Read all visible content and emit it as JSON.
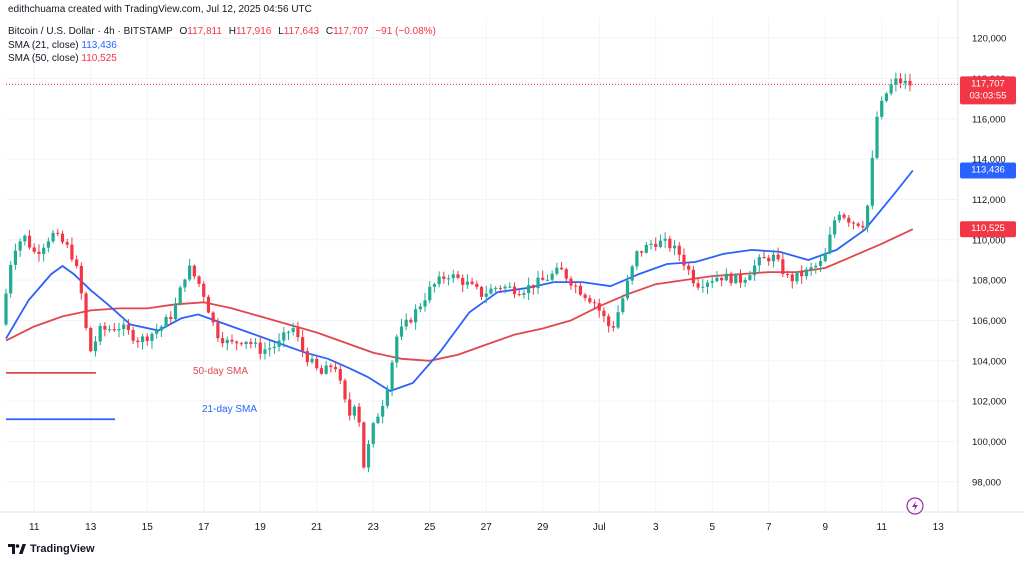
{
  "header": {
    "attribution": "edithchuama created with TradingView.com, Jul 12, 2025 04:56 UTC",
    "symbol": "Bitcoin / U.S. Dollar · 4h · BITSTAMP",
    "ohlc": {
      "o_label": "O",
      "o": "117,811",
      "h_label": "H",
      "h": "117,916",
      "l_label": "L",
      "l": "117,643",
      "c_label": "C",
      "c": "117,707",
      "change": "−91 (−0.08%)"
    },
    "sma21_label": "SMA (21, close)",
    "sma21_value": "113,436",
    "sma50_label": "SMA (50, close)",
    "sma50_value": "110,525"
  },
  "annotations": {
    "sma50_text": "50-day SMA",
    "sma21_text": "21-day SMA"
  },
  "price_tags": {
    "last_price": "117,707",
    "countdown": "03:03:55",
    "sma21": "113,436",
    "sma50": "110,525"
  },
  "footer": {
    "brand": "TradingView"
  },
  "colors": {
    "up": "#22ab94",
    "down": "#f23645",
    "sma21": "#2962ff",
    "sma50": "#e0474c",
    "grid": "#f0f3fa"
  },
  "chart_data": {
    "type": "candlestick",
    "ylim": [
      96500,
      121000
    ],
    "y_ticks": [
      98000,
      100000,
      102000,
      104000,
      106000,
      108000,
      110000,
      112000,
      114000,
      116000,
      118000,
      120000
    ],
    "x_ticks": [
      "11",
      "13",
      "15",
      "17",
      "19",
      "21",
      "23",
      "25",
      "27",
      "29",
      "Jul",
      "3",
      "5",
      "7",
      "9",
      "11",
      "13"
    ],
    "x_range_days": [
      10.0,
      43.7
    ],
    "x_tick_days": [
      11,
      13,
      15,
      17,
      19,
      21,
      23,
      25,
      27,
      29,
      31,
      33,
      35,
      37,
      39,
      41,
      43
    ],
    "anchors": [
      [
        10.0,
        105800
      ],
      [
        10.4,
        109500
      ],
      [
        10.8,
        110200
      ],
      [
        11.2,
        109300
      ],
      [
        11.8,
        110300
      ],
      [
        12.3,
        109700
      ],
      [
        12.6,
        109000
      ],
      [
        12.9,
        106800
      ],
      [
        13.1,
        104300
      ],
      [
        13.5,
        105500
      ],
      [
        14.2,
        105700
      ],
      [
        14.9,
        105000
      ],
      [
        15.6,
        105600
      ],
      [
        16.1,
        106400
      ],
      [
        16.6,
        108700
      ],
      [
        17.1,
        107600
      ],
      [
        17.6,
        105400
      ],
      [
        18.1,
        104800
      ],
      [
        18.6,
        105100
      ],
      [
        19.2,
        104500
      ],
      [
        19.8,
        104800
      ],
      [
        20.3,
        105700
      ],
      [
        20.7,
        104400
      ],
      [
        21.3,
        103300
      ],
      [
        21.8,
        103900
      ],
      [
        22.3,
        101200
      ],
      [
        22.6,
        102300
      ],
      [
        22.8,
        98600
      ],
      [
        23.2,
        100900
      ],
      [
        23.6,
        102300
      ],
      [
        24.0,
        105200
      ],
      [
        24.6,
        106300
      ],
      [
        25.2,
        107600
      ],
      [
        25.8,
        108300
      ],
      [
        26.4,
        107900
      ],
      [
        27.0,
        107300
      ],
      [
        27.6,
        107700
      ],
      [
        28.4,
        107500
      ],
      [
        29.2,
        108000
      ],
      [
        29.8,
        108500
      ],
      [
        30.4,
        107600
      ],
      [
        31.0,
        106900
      ],
      [
        31.6,
        105500
      ],
      [
        32.0,
        107100
      ],
      [
        32.5,
        109300
      ],
      [
        33.1,
        109900
      ],
      [
        33.6,
        109800
      ],
      [
        34.0,
        109300
      ],
      [
        34.6,
        107800
      ],
      [
        35.4,
        108200
      ],
      [
        36.2,
        108000
      ],
      [
        36.8,
        108900
      ],
      [
        37.3,
        109200
      ],
      [
        37.9,
        108000
      ],
      [
        38.5,
        108400
      ],
      [
        39.1,
        108900
      ],
      [
        39.6,
        111500
      ],
      [
        40.1,
        110900
      ],
      [
        40.6,
        110800
      ],
      [
        41.0,
        116100
      ],
      [
        41.4,
        117500
      ],
      [
        41.7,
        117900
      ],
      [
        42.1,
        117707
      ]
    ],
    "sma21": [
      [
        10.0,
        105100
      ],
      [
        10.8,
        107000
      ],
      [
        11.6,
        108300
      ],
      [
        12.0,
        108700
      ],
      [
        12.4,
        108300
      ],
      [
        13.0,
        107500
      ],
      [
        13.6,
        106800
      ],
      [
        14.4,
        105800
      ],
      [
        15.4,
        105500
      ],
      [
        16.2,
        106100
      ],
      [
        16.8,
        106300
      ],
      [
        17.6,
        105900
      ],
      [
        18.6,
        105400
      ],
      [
        19.6,
        104900
      ],
      [
        20.6,
        104400
      ],
      [
        21.4,
        104100
      ],
      [
        22.2,
        103600
      ],
      [
        22.8,
        103200
      ],
      [
        23.6,
        102500
      ],
      [
        24.4,
        102900
      ],
      [
        25.4,
        104500
      ],
      [
        26.4,
        106400
      ],
      [
        27.4,
        107400
      ],
      [
        28.4,
        107600
      ],
      [
        29.4,
        107900
      ],
      [
        30.4,
        107900
      ],
      [
        31.4,
        107700
      ],
      [
        32.4,
        108300
      ],
      [
        33.4,
        108800
      ],
      [
        34.4,
        108900
      ],
      [
        35.4,
        109300
      ],
      [
        36.4,
        109500
      ],
      [
        37.4,
        109400
      ],
      [
        38.4,
        109000
      ],
      [
        39.4,
        109500
      ],
      [
        40.4,
        110500
      ],
      [
        41.4,
        112200
      ],
      [
        42.1,
        113436
      ]
    ],
    "sma50": [
      [
        10.0,
        105000
      ],
      [
        11.0,
        105700
      ],
      [
        12.0,
        106200
      ],
      [
        13.0,
        106500
      ],
      [
        14.0,
        106600
      ],
      [
        15.0,
        106600
      ],
      [
        16.0,
        106800
      ],
      [
        17.0,
        106900
      ],
      [
        18.0,
        106600
      ],
      [
        19.0,
        106200
      ],
      [
        20.0,
        105800
      ],
      [
        21.0,
        105400
      ],
      [
        22.0,
        104900
      ],
      [
        23.0,
        104400
      ],
      [
        24.0,
        104100
      ],
      [
        25.0,
        104000
      ],
      [
        26.0,
        104300
      ],
      [
        27.0,
        104800
      ],
      [
        28.0,
        105300
      ],
      [
        29.0,
        105600
      ],
      [
        30.0,
        106000
      ],
      [
        31.0,
        106700
      ],
      [
        32.0,
        107300
      ],
      [
        33.0,
        107800
      ],
      [
        34.0,
        108000
      ],
      [
        35.0,
        108200
      ],
      [
        36.0,
        108300
      ],
      [
        37.0,
        108400
      ],
      [
        38.0,
        108400
      ],
      [
        39.0,
        108600
      ],
      [
        40.0,
        109200
      ],
      [
        41.0,
        109800
      ],
      [
        42.1,
        110525
      ]
    ],
    "last_price": 117707,
    "sma21_last": 113436,
    "sma50_last": 110525,
    "legend_sma50_level": 103400,
    "legend_sma21_level": 101100
  }
}
